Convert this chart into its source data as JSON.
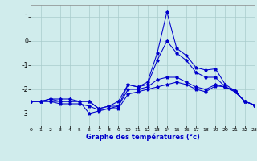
{
  "title": "Graphe des températures (°c)",
  "background_color": "#d0ecec",
  "grid_color": "#a8cccc",
  "line_color": "#0000cc",
  "xlim": [
    0,
    23
  ],
  "ylim": [
    -3.5,
    1.5
  ],
  "yticks": [
    -3,
    -2,
    -1,
    0,
    1
  ],
  "xticks": [
    0,
    1,
    2,
    3,
    4,
    5,
    6,
    7,
    8,
    9,
    10,
    11,
    12,
    13,
    14,
    15,
    16,
    17,
    18,
    19,
    20,
    21,
    22,
    23
  ],
  "series": [
    [
      -2.5,
      -2.5,
      -2.4,
      -2.5,
      -2.5,
      -2.5,
      -3.0,
      -2.9,
      -2.8,
      -2.7,
      -1.8,
      -1.9,
      -1.7,
      -0.5,
      1.2,
      -0.3,
      -0.6,
      -1.1,
      -1.2,
      -1.15,
      -1.8,
      -2.05,
      -2.5,
      -2.65
    ],
    [
      -2.5,
      -2.5,
      -2.4,
      -2.4,
      -2.4,
      -2.5,
      -2.5,
      -2.8,
      -2.7,
      -2.5,
      -1.8,
      -1.9,
      -1.8,
      -0.8,
      0.0,
      -0.5,
      -0.8,
      -1.3,
      -1.5,
      -1.5,
      -1.9,
      -2.05,
      -2.5,
      -2.65
    ],
    [
      -2.5,
      -2.5,
      -2.5,
      -2.5,
      -2.5,
      -2.5,
      -2.5,
      -2.8,
      -2.7,
      -2.7,
      -2.0,
      -2.0,
      -1.9,
      -1.6,
      -1.5,
      -1.5,
      -1.7,
      -1.9,
      -2.0,
      -1.8,
      -1.9,
      -2.1,
      -2.5,
      -2.65
    ],
    [
      -2.5,
      -2.5,
      -2.5,
      -2.6,
      -2.6,
      -2.6,
      -2.7,
      -2.85,
      -2.8,
      -2.8,
      -2.2,
      -2.1,
      -2.0,
      -1.9,
      -1.8,
      -1.7,
      -1.8,
      -2.0,
      -2.1,
      -1.85,
      -1.9,
      -2.1,
      -2.5,
      -2.65
    ]
  ]
}
